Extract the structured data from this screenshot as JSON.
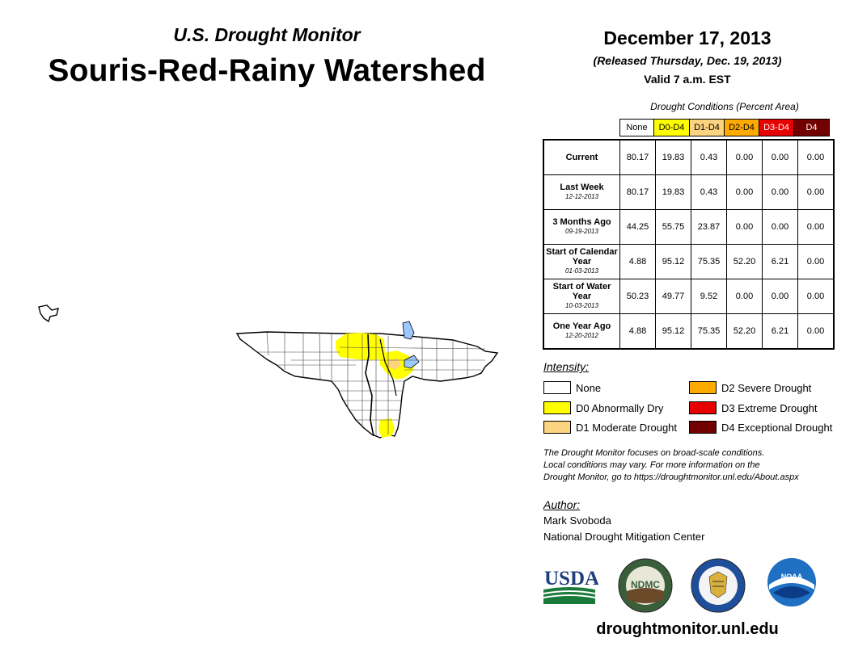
{
  "header": {
    "subtitle": "U.S. Drought Monitor",
    "title": "Souris-Red-Rainy Watershed",
    "date": "December 17, 2013",
    "released": "(Released Thursday, Dec. 19, 2013)",
    "valid": "Valid 7 a.m. EST"
  },
  "table": {
    "caption": "Drought Conditions (Percent Area)",
    "columns": [
      "None",
      "D0-D4",
      "D1-D4",
      "D2-D4",
      "D3-D4",
      "D4"
    ],
    "column_colors": [
      "#ffffff",
      "#ffff00",
      "#fcd37f",
      "#ffaa00",
      "#e60000",
      "#730000"
    ],
    "column_text_colors": [
      "#000000",
      "#000000",
      "#000000",
      "#000000",
      "#ffffff",
      "#ffffff"
    ],
    "rows": [
      {
        "label": "Current",
        "date": "",
        "values": [
          "80.17",
          "19.83",
          "0.43",
          "0.00",
          "0.00",
          "0.00"
        ]
      },
      {
        "label": "Last Week",
        "date": "12-12-2013",
        "values": [
          "80.17",
          "19.83",
          "0.43",
          "0.00",
          "0.00",
          "0.00"
        ]
      },
      {
        "label": "3 Months Ago",
        "date": "09-19-2013",
        "values": [
          "44.25",
          "55.75",
          "23.87",
          "0.00",
          "0.00",
          "0.00"
        ]
      },
      {
        "label": "Start of Calendar Year",
        "date": "01-03-2013",
        "values": [
          "4.88",
          "95.12",
          "75.35",
          "52.20",
          "6.21",
          "0.00"
        ]
      },
      {
        "label": "Start of Water Year",
        "date": "10-03-2013",
        "values": [
          "50.23",
          "49.77",
          "9.52",
          "0.00",
          "0.00",
          "0.00"
        ]
      },
      {
        "label": "One Year Ago",
        "date": "12-20-2012",
        "values": [
          "4.88",
          "95.12",
          "75.35",
          "52.20",
          "6.21",
          "0.00"
        ]
      }
    ]
  },
  "legend": {
    "label": "Intensity:",
    "items": [
      {
        "label": "None",
        "color": "#ffffff"
      },
      {
        "label": "D0 Abnormally Dry",
        "color": "#ffff00"
      },
      {
        "label": "D1 Moderate Drought",
        "color": "#fcd37f"
      },
      {
        "label": "D2 Severe Drought",
        "color": "#ffaa00"
      },
      {
        "label": "D3 Extreme Drought",
        "color": "#e60000"
      },
      {
        "label": "D4 Exceptional Drought",
        "color": "#730000"
      }
    ]
  },
  "note": {
    "line1": "The Drought Monitor focuses on broad-scale conditions.",
    "line2": "Local conditions may vary. For more information on the",
    "line3": "Drought Monitor, go to https://droughtmonitor.unl.edu/About.aspx"
  },
  "author": {
    "label": "Author:",
    "name": "Mark Svoboda",
    "org": "National Drought Mitigation Center"
  },
  "logos": {
    "usda": "USDA",
    "ndmc": "NDMC",
    "noaa": "NOAA"
  },
  "footer": {
    "site": "droughtmonitor.unl.edu"
  }
}
